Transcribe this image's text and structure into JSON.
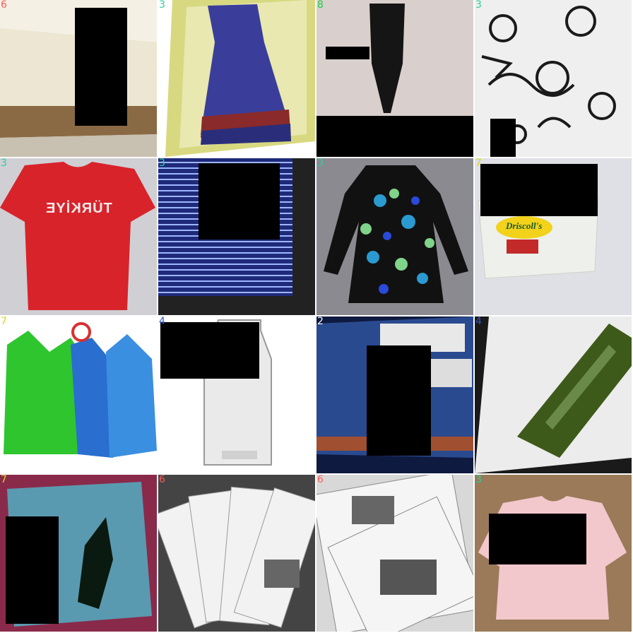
{
  "tiles": [
    {
      "label": "6",
      "label_color": "#ff5a5a"
    },
    {
      "label": "3",
      "label_color": "#2ecfa0"
    },
    {
      "label": "8",
      "label_color": "#22cc44"
    },
    {
      "label": "3",
      "label_color": "#2ecfa0"
    },
    {
      "label": "3",
      "label_color": "#2ecfa0"
    },
    {
      "label": "3",
      "label_color": "#2ecfa0"
    },
    {
      "label": "3",
      "label_color": "#2ecfa0"
    },
    {
      "label": "7",
      "label_color": "#d8d820"
    },
    {
      "label": "7",
      "label_color": "#d8d820"
    },
    {
      "label": "4",
      "label_color": "#3355cc"
    },
    {
      "label": "2",
      "label_color": "#ffffff"
    },
    {
      "label": "4",
      "label_color": "#3355cc"
    },
    {
      "label": "7",
      "label_color": "#d8d820"
    },
    {
      "label": "6",
      "label_color": "#ff5a5a"
    },
    {
      "label": "6",
      "label_color": "#ff5a5a"
    },
    {
      "label": "3",
      "label_color": "#2ecfa0"
    }
  ],
  "texts": {
    "tshirt_print": "TÜRKİYE",
    "berry_brand": "Driscoll's"
  }
}
